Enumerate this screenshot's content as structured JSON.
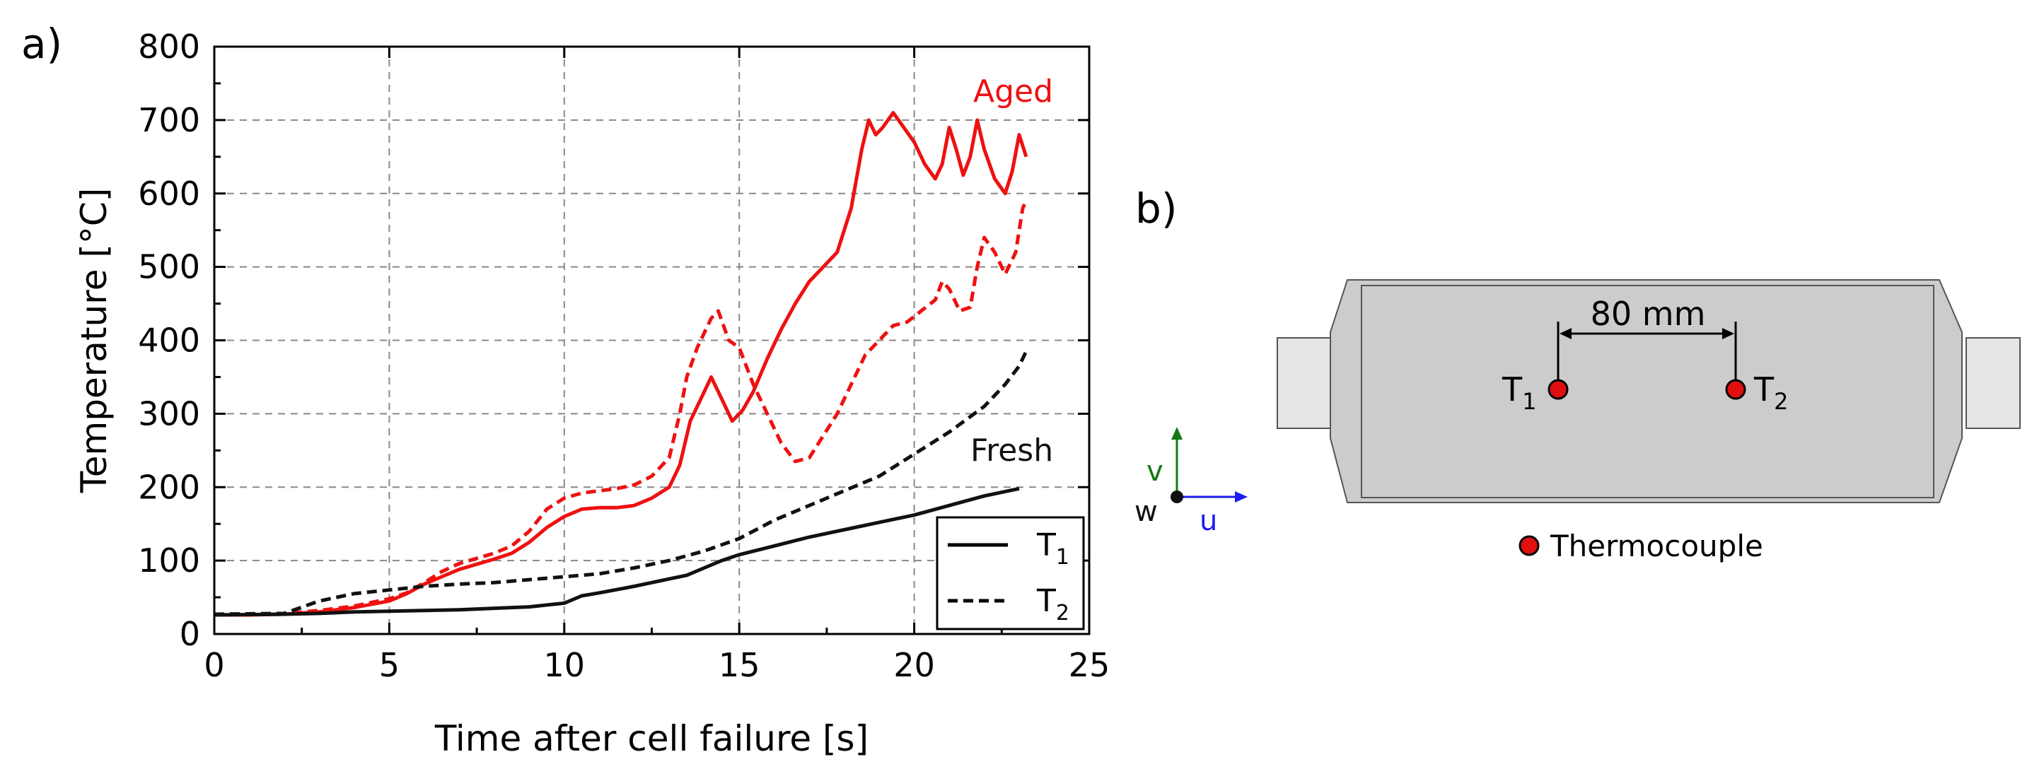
{
  "panel_a": {
    "label": "a)"
  },
  "panel_b": {
    "label": "b)"
  },
  "chart_data": {
    "type": "line",
    "title": "",
    "xlabel": "Time after cell failure [s]",
    "ylabel": "Temperature [°C]",
    "xlim": [
      0,
      25
    ],
    "ylim": [
      0,
      800
    ],
    "xticks": [
      0,
      5,
      10,
      15,
      20,
      25
    ],
    "yticks": [
      0,
      100,
      200,
      300,
      400,
      500,
      600,
      700,
      800
    ],
    "grid": true,
    "annotations": {
      "aged": "Aged",
      "fresh": "Fresh"
    },
    "legend": {
      "position": "bottom-right",
      "entries": [
        {
          "label": "T",
          "sub": "1",
          "style": "solid"
        },
        {
          "label": "T",
          "sub": "2",
          "style": "dashed"
        }
      ]
    },
    "series": [
      {
        "name": "Aged T1",
        "color": "#ee1111",
        "style": "solid",
        "points": [
          [
            0,
            26
          ],
          [
            1,
            26
          ],
          [
            2,
            27
          ],
          [
            3,
            30
          ],
          [
            4,
            36
          ],
          [
            5,
            45
          ],
          [
            5.5,
            55
          ],
          [
            6,
            68
          ],
          [
            6.5,
            78
          ],
          [
            7,
            88
          ],
          [
            7.5,
            95
          ],
          [
            8,
            102
          ],
          [
            8.5,
            110
          ],
          [
            9,
            125
          ],
          [
            9.5,
            145
          ],
          [
            10,
            160
          ],
          [
            10.5,
            170
          ],
          [
            11,
            172
          ],
          [
            11.5,
            172
          ],
          [
            12,
            175
          ],
          [
            12.5,
            185
          ],
          [
            13,
            200
          ],
          [
            13.3,
            230
          ],
          [
            13.6,
            290
          ],
          [
            13.9,
            320
          ],
          [
            14.2,
            350
          ],
          [
            14.5,
            320
          ],
          [
            14.8,
            290
          ],
          [
            15.1,
            305
          ],
          [
            15.4,
            330
          ],
          [
            15.8,
            375
          ],
          [
            16.2,
            415
          ],
          [
            16.6,
            450
          ],
          [
            17,
            480
          ],
          [
            17.4,
            500
          ],
          [
            17.8,
            520
          ],
          [
            18.2,
            580
          ],
          [
            18.5,
            660
          ],
          [
            18.7,
            700
          ],
          [
            18.9,
            680
          ],
          [
            19.1,
            690
          ],
          [
            19.4,
            710
          ],
          [
            19.7,
            690
          ],
          [
            20,
            670
          ],
          [
            20.3,
            640
          ],
          [
            20.6,
            620
          ],
          [
            20.8,
            640
          ],
          [
            21,
            690
          ],
          [
            21.2,
            660
          ],
          [
            21.4,
            625
          ],
          [
            21.6,
            650
          ],
          [
            21.8,
            700
          ],
          [
            22,
            660
          ],
          [
            22.3,
            620
          ],
          [
            22.6,
            600
          ],
          [
            22.8,
            630
          ],
          [
            23,
            680
          ],
          [
            23.2,
            650
          ]
        ]
      },
      {
        "name": "Aged T2",
        "color": "#ee1111",
        "style": "dashed",
        "points": [
          [
            0,
            27
          ],
          [
            1,
            27
          ],
          [
            2,
            28
          ],
          [
            3,
            32
          ],
          [
            4,
            38
          ],
          [
            5,
            48
          ],
          [
            5.5,
            56
          ],
          [
            6,
            70
          ],
          [
            6.5,
            85
          ],
          [
            7,
            96
          ],
          [
            7.5,
            103
          ],
          [
            8,
            110
          ],
          [
            8.5,
            120
          ],
          [
            9,
            140
          ],
          [
            9.5,
            170
          ],
          [
            10,
            185
          ],
          [
            10.5,
            192
          ],
          [
            11,
            195
          ],
          [
            11.5,
            198
          ],
          [
            12,
            203
          ],
          [
            12.5,
            215
          ],
          [
            13,
            240
          ],
          [
            13.3,
            300
          ],
          [
            13.5,
            350
          ],
          [
            13.8,
            390
          ],
          [
            14.2,
            430
          ],
          [
            14.4,
            440
          ],
          [
            14.7,
            400
          ],
          [
            15,
            390
          ],
          [
            15.4,
            340
          ],
          [
            15.8,
            300
          ],
          [
            16.2,
            260
          ],
          [
            16.6,
            235
          ],
          [
            17,
            240
          ],
          [
            17.4,
            270
          ],
          [
            17.8,
            300
          ],
          [
            18.2,
            340
          ],
          [
            18.6,
            380
          ],
          [
            19,
            400
          ],
          [
            19.4,
            420
          ],
          [
            19.8,
            425
          ],
          [
            20.2,
            440
          ],
          [
            20.6,
            455
          ],
          [
            20.8,
            480
          ],
          [
            21,
            470
          ],
          [
            21.3,
            440
          ],
          [
            21.6,
            445
          ],
          [
            21.8,
            500
          ],
          [
            22,
            540
          ],
          [
            22.3,
            520
          ],
          [
            22.6,
            490
          ],
          [
            22.9,
            520
          ],
          [
            23.1,
            580
          ],
          [
            23.2,
            590
          ]
        ]
      },
      {
        "name": "Fresh T1",
        "color": "#111111",
        "style": "solid",
        "points": [
          [
            0,
            26
          ],
          [
            2,
            27
          ],
          [
            3,
            28
          ],
          [
            4,
            30
          ],
          [
            5,
            31
          ],
          [
            6,
            32
          ],
          [
            7,
            33
          ],
          [
            8,
            35
          ],
          [
            9,
            37
          ],
          [
            10,
            42
          ],
          [
            10.5,
            52
          ],
          [
            11,
            56
          ],
          [
            12,
            65
          ],
          [
            13,
            75
          ],
          [
            13.5,
            80
          ],
          [
            14,
            90
          ],
          [
            14.5,
            100
          ],
          [
            15,
            108
          ],
          [
            16,
            120
          ],
          [
            17,
            132
          ],
          [
            18,
            142
          ],
          [
            19,
            152
          ],
          [
            20,
            162
          ],
          [
            21,
            175
          ],
          [
            22,
            188
          ],
          [
            23,
            198
          ]
        ]
      },
      {
        "name": "Fresh T2",
        "color": "#111111",
        "style": "dashed",
        "points": [
          [
            0,
            27
          ],
          [
            2,
            28
          ],
          [
            3,
            45
          ],
          [
            4,
            55
          ],
          [
            5,
            60
          ],
          [
            6,
            65
          ],
          [
            7,
            68
          ],
          [
            8,
            70
          ],
          [
            9,
            74
          ],
          [
            10,
            78
          ],
          [
            11,
            82
          ],
          [
            12,
            90
          ],
          [
            13,
            100
          ],
          [
            14,
            113
          ],
          [
            15,
            130
          ],
          [
            16,
            155
          ],
          [
            17,
            175
          ],
          [
            18,
            195
          ],
          [
            19,
            215
          ],
          [
            20,
            245
          ],
          [
            21,
            275
          ],
          [
            22,
            310
          ],
          [
            22.6,
            340
          ],
          [
            23,
            365
          ],
          [
            23.2,
            385
          ]
        ]
      }
    ]
  },
  "diagram": {
    "dimension_label": "80 mm",
    "sensors": [
      {
        "label": "T",
        "sub": "1"
      },
      {
        "label": "T",
        "sub": "2"
      }
    ],
    "axes": {
      "u": "u",
      "v": "v",
      "w": "w"
    },
    "legend_label": "Thermocouple",
    "colors": {
      "body": "#cccccc",
      "tab": "#e6e6e6",
      "sensor": "#e01010",
      "u_axis": "#1c1cf0",
      "v_axis": "#127a12"
    }
  }
}
